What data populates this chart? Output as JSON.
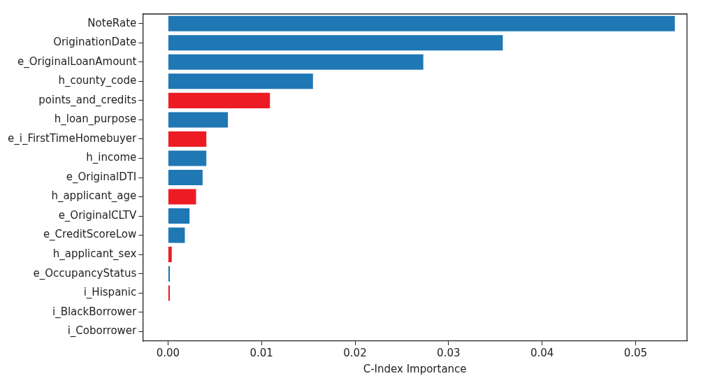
{
  "chart_data": {
    "type": "bar",
    "orientation": "horizontal",
    "xlabel": "C-Index Importance",
    "categories": [
      "NoteRate",
      "OriginationDate",
      "e_OriginalLoanAmount",
      "h_county_code",
      "points_and_credits",
      "h_loan_purpose",
      "e_i_FirstTimeHomebuyer",
      "h_income",
      "e_OriginalDTI",
      "h_applicant_age",
      "e_OriginalCLTV",
      "e_CreditScoreLow",
      "h_applicant_sex",
      "e_OccupancyStatus",
      "i_Hispanic",
      "i_BlackBorrower",
      "i_Coborrower"
    ],
    "values": [
      0.0542,
      0.0358,
      0.0273,
      0.0155,
      0.0109,
      0.0064,
      0.0041,
      0.0041,
      0.0037,
      0.003,
      0.0023,
      0.0018,
      0.0004,
      0.0002,
      0.0002,
      0,
      0
    ],
    "colors": [
      "#1f77b4",
      "#1f77b4",
      "#1f77b4",
      "#1f77b4",
      "#ed1c24",
      "#1f77b4",
      "#ed1c24",
      "#1f77b4",
      "#1f77b4",
      "#ed1c24",
      "#1f77b4",
      "#1f77b4",
      "#ed1c24",
      "#1f77b4",
      "#ed1c24",
      "#1f77b4",
      "#1f77b4"
    ],
    "xlim": [
      -0.0027,
      0.0555
    ],
    "xticks": [
      {
        "value": 0,
        "label": "0.00"
      },
      {
        "value": 0.01,
        "label": "0.01"
      },
      {
        "value": 0.02,
        "label": "0.02"
      },
      {
        "value": 0.03,
        "label": "0.03"
      },
      {
        "value": 0.04,
        "label": "0.04"
      },
      {
        "value": 0.05,
        "label": "0.05"
      }
    ],
    "grid": false,
    "legend": false
  }
}
